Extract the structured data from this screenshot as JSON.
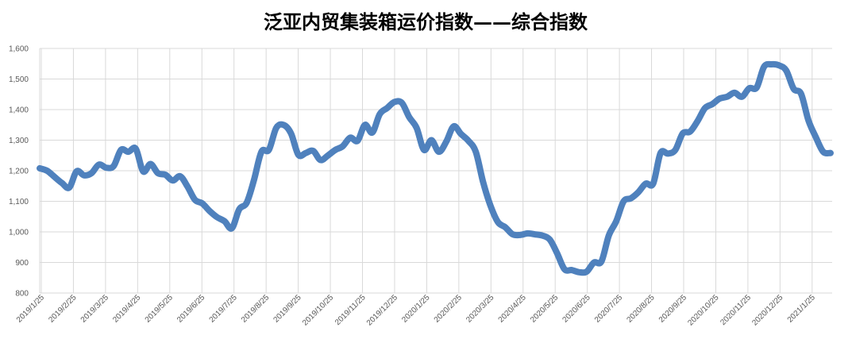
{
  "chart_data": {
    "type": "line",
    "title": "泛亚内贸集装箱运价指数——综合指数",
    "xlabel": "",
    "ylabel": "",
    "ylim": [
      800,
      1600
    ],
    "yticks": [
      800,
      900,
      1000,
      1100,
      1200,
      1300,
      1400,
      1500,
      1600
    ],
    "ytick_labels": [
      "800",
      "900",
      "1,000",
      "1,100",
      "1,200",
      "1,300",
      "1,400",
      "1,500",
      "1,600"
    ],
    "xtick_labels": [
      "2019/1/25",
      "2019/2/25",
      "2019/3/25",
      "2019/4/25",
      "2019/5/25",
      "2019/6/25",
      "2019/7/25",
      "2019/8/25",
      "2019/9/25",
      "2019/10/25",
      "2019/11/25",
      "2019/12/25",
      "2020/1/25",
      "2020/2/25",
      "2020/3/25",
      "2020/4/25",
      "2020/5/25",
      "2020/6/25",
      "2020/7/25",
      "2020/8/25",
      "2020/9/25",
      "2020/10/25",
      "2020/11/25",
      "2020/12/25",
      "2021/1/25"
    ],
    "grid": true,
    "legend": "none",
    "line_color": "#4f81bd",
    "series": [
      {
        "values": [
          1208,
          1200,
          1180,
          1160,
          1145,
          1198,
          1185,
          1192,
          1220,
          1210,
          1215,
          1268,
          1262,
          1272,
          1198,
          1222,
          1192,
          1187,
          1168,
          1182,
          1148,
          1105,
          1093,
          1068,
          1048,
          1035,
          1012,
          1074,
          1095,
          1170,
          1262,
          1268,
          1340,
          1350,
          1322,
          1252,
          1258,
          1265,
          1235,
          1250,
          1268,
          1280,
          1308,
          1298,
          1350,
          1325,
          1385,
          1405,
          1425,
          1422,
          1375,
          1340,
          1268,
          1300,
          1262,
          1295,
          1345,
          1320,
          1298,
          1262,
          1162,
          1085,
          1032,
          1015,
          992,
          990,
          995,
          992,
          988,
          975,
          930,
          878,
          875,
          868,
          870,
          900,
          903,
          988,
          1035,
          1100,
          1110,
          1130,
          1158,
          1158,
          1258,
          1256,
          1268,
          1322,
          1328,
          1362,
          1405,
          1418,
          1436,
          1442,
          1455,
          1442,
          1470,
          1472,
          1540,
          1548,
          1545,
          1528,
          1468,
          1452,
          1365,
          1310,
          1262,
          1258
        ]
      }
    ]
  }
}
